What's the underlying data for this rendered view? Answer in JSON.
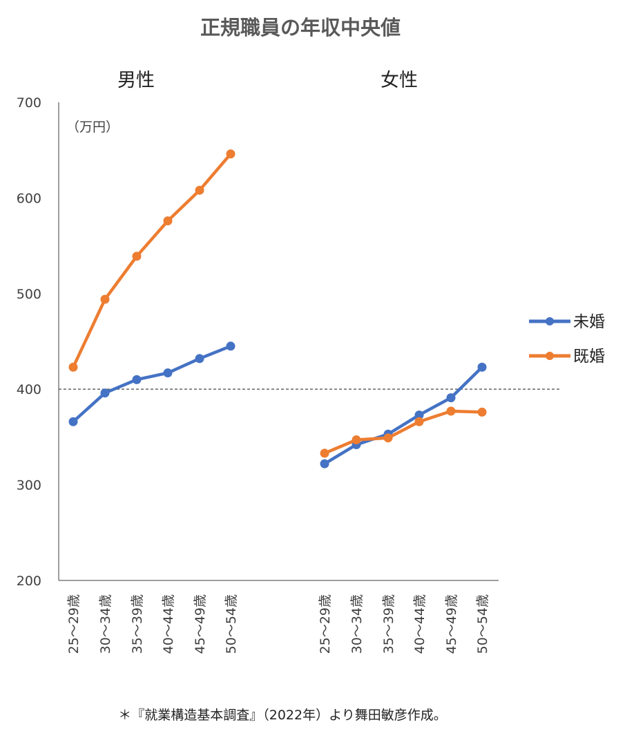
{
  "chart_data": {
    "type": "line",
    "title": "正規職員の年収中央値",
    "unit_label": "（万円）",
    "ylim": [
      200,
      700
    ],
    "yticks": [
      "200",
      "300",
      "400",
      "500",
      "600",
      "700"
    ],
    "reference_line": 400,
    "grid": false,
    "legend_position": "right",
    "categories": [
      "25～29歳",
      "30～34歳",
      "35～39歳",
      "40～44歳",
      "45～49歳",
      "50～54歳"
    ],
    "colors": {
      "未婚": "#4472C4",
      "既婚": "#ED7D31"
    },
    "panels": [
      {
        "label": "男性",
        "series": [
          {
            "name": "未婚",
            "values": [
              366,
              396,
              410,
              417,
              432,
              445
            ]
          },
          {
            "name": "既婚",
            "values": [
              423,
              494,
              539,
              576,
              608,
              646
            ]
          }
        ]
      },
      {
        "label": "女性",
        "series": [
          {
            "name": "未婚",
            "values": [
              322,
              342,
              353,
              373,
              391,
              423
            ]
          },
          {
            "name": "既婚",
            "values": [
              333,
              347,
              349,
              366,
              377,
              376
            ]
          }
        ]
      }
    ],
    "legend": [
      "未婚",
      "既婚"
    ]
  },
  "footnote": "＊『就業構造基本調査』（2022年）より舞田敏彦作成。"
}
